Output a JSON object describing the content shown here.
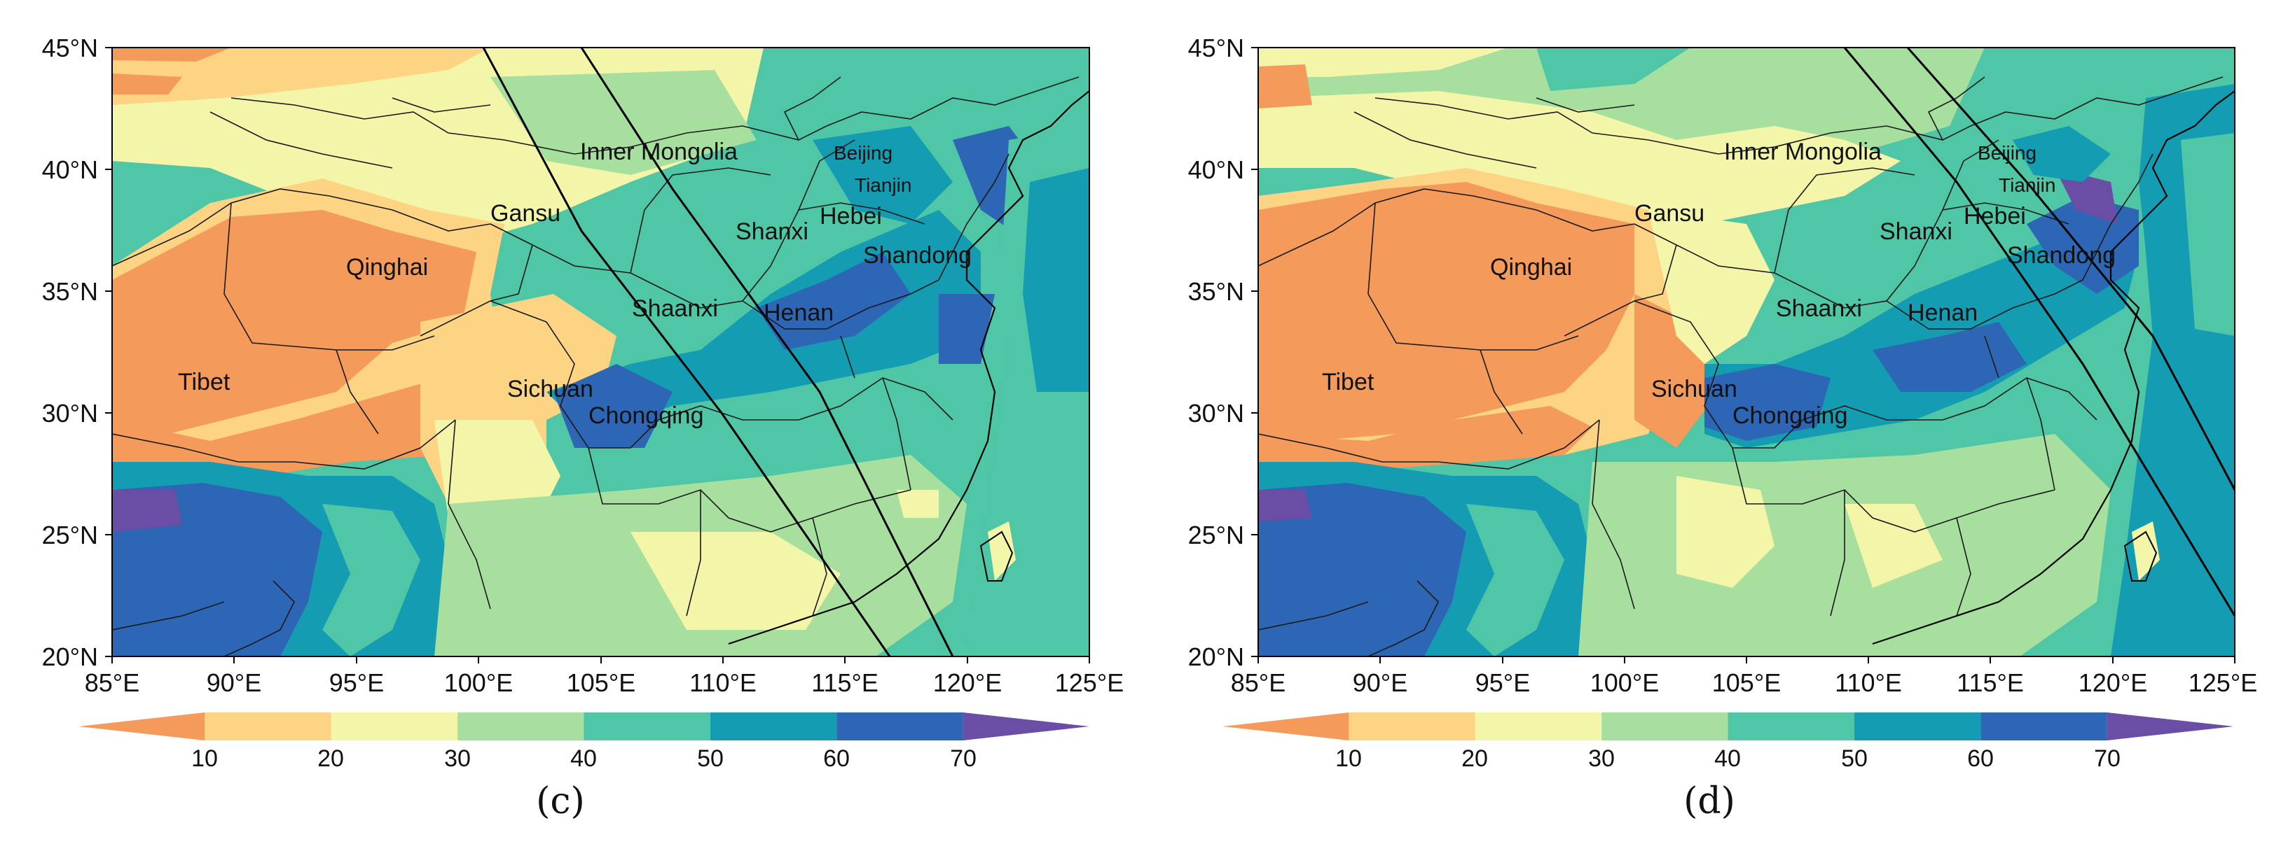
{
  "colorbar": {
    "ticks": [
      "10",
      "20",
      "30",
      "40",
      "50",
      "60",
      "70"
    ],
    "colors": [
      "#f49a5a",
      "#fdd384",
      "#f3f6a8",
      "#a7df9e",
      "#4fc6a6",
      "#149cb2",
      "#2d66b5",
      "#6a4ea5"
    ]
  },
  "axes": {
    "lat_labels": [
      "45°N",
      "40°N",
      "35°N",
      "30°N",
      "25°N",
      "20°N"
    ],
    "lon_labels": [
      "85°E",
      "90°E",
      "95°E",
      "100°E",
      "105°E",
      "110°E",
      "115°E",
      "120°E",
      "125°E"
    ]
  },
  "panels": [
    {
      "caption": "(c)",
      "places": {
        "inner_mongolia": "Inner Mongolia",
        "beijing": "Beijing",
        "tianjin": "Tianjin",
        "gansu": "Gansu",
        "hebei": "Hebei",
        "shanxi": "Shanxi",
        "qinghai": "Qinghai",
        "shandong": "Shandong",
        "shaanxi": "Shaanxi",
        "henan": "Henan",
        "tibet": "Tibet",
        "sichuan": "Sichuan",
        "chongqing": "Chongqing"
      }
    },
    {
      "caption": "(d)",
      "places": {
        "inner_mongolia": "Inner Mongolia",
        "beijing": "Beijing",
        "tianjin": "Tianjin",
        "gansu": "Gansu",
        "hebei": "Hebei",
        "shanxi": "Shanxi",
        "qinghai": "Qinghai",
        "shandong": "Shandong",
        "shaanxi": "Shaanxi",
        "henan": "Henan",
        "tibet": "Tibet",
        "sichuan": "Sichuan",
        "chongqing": "Chongqing"
      }
    }
  ]
}
